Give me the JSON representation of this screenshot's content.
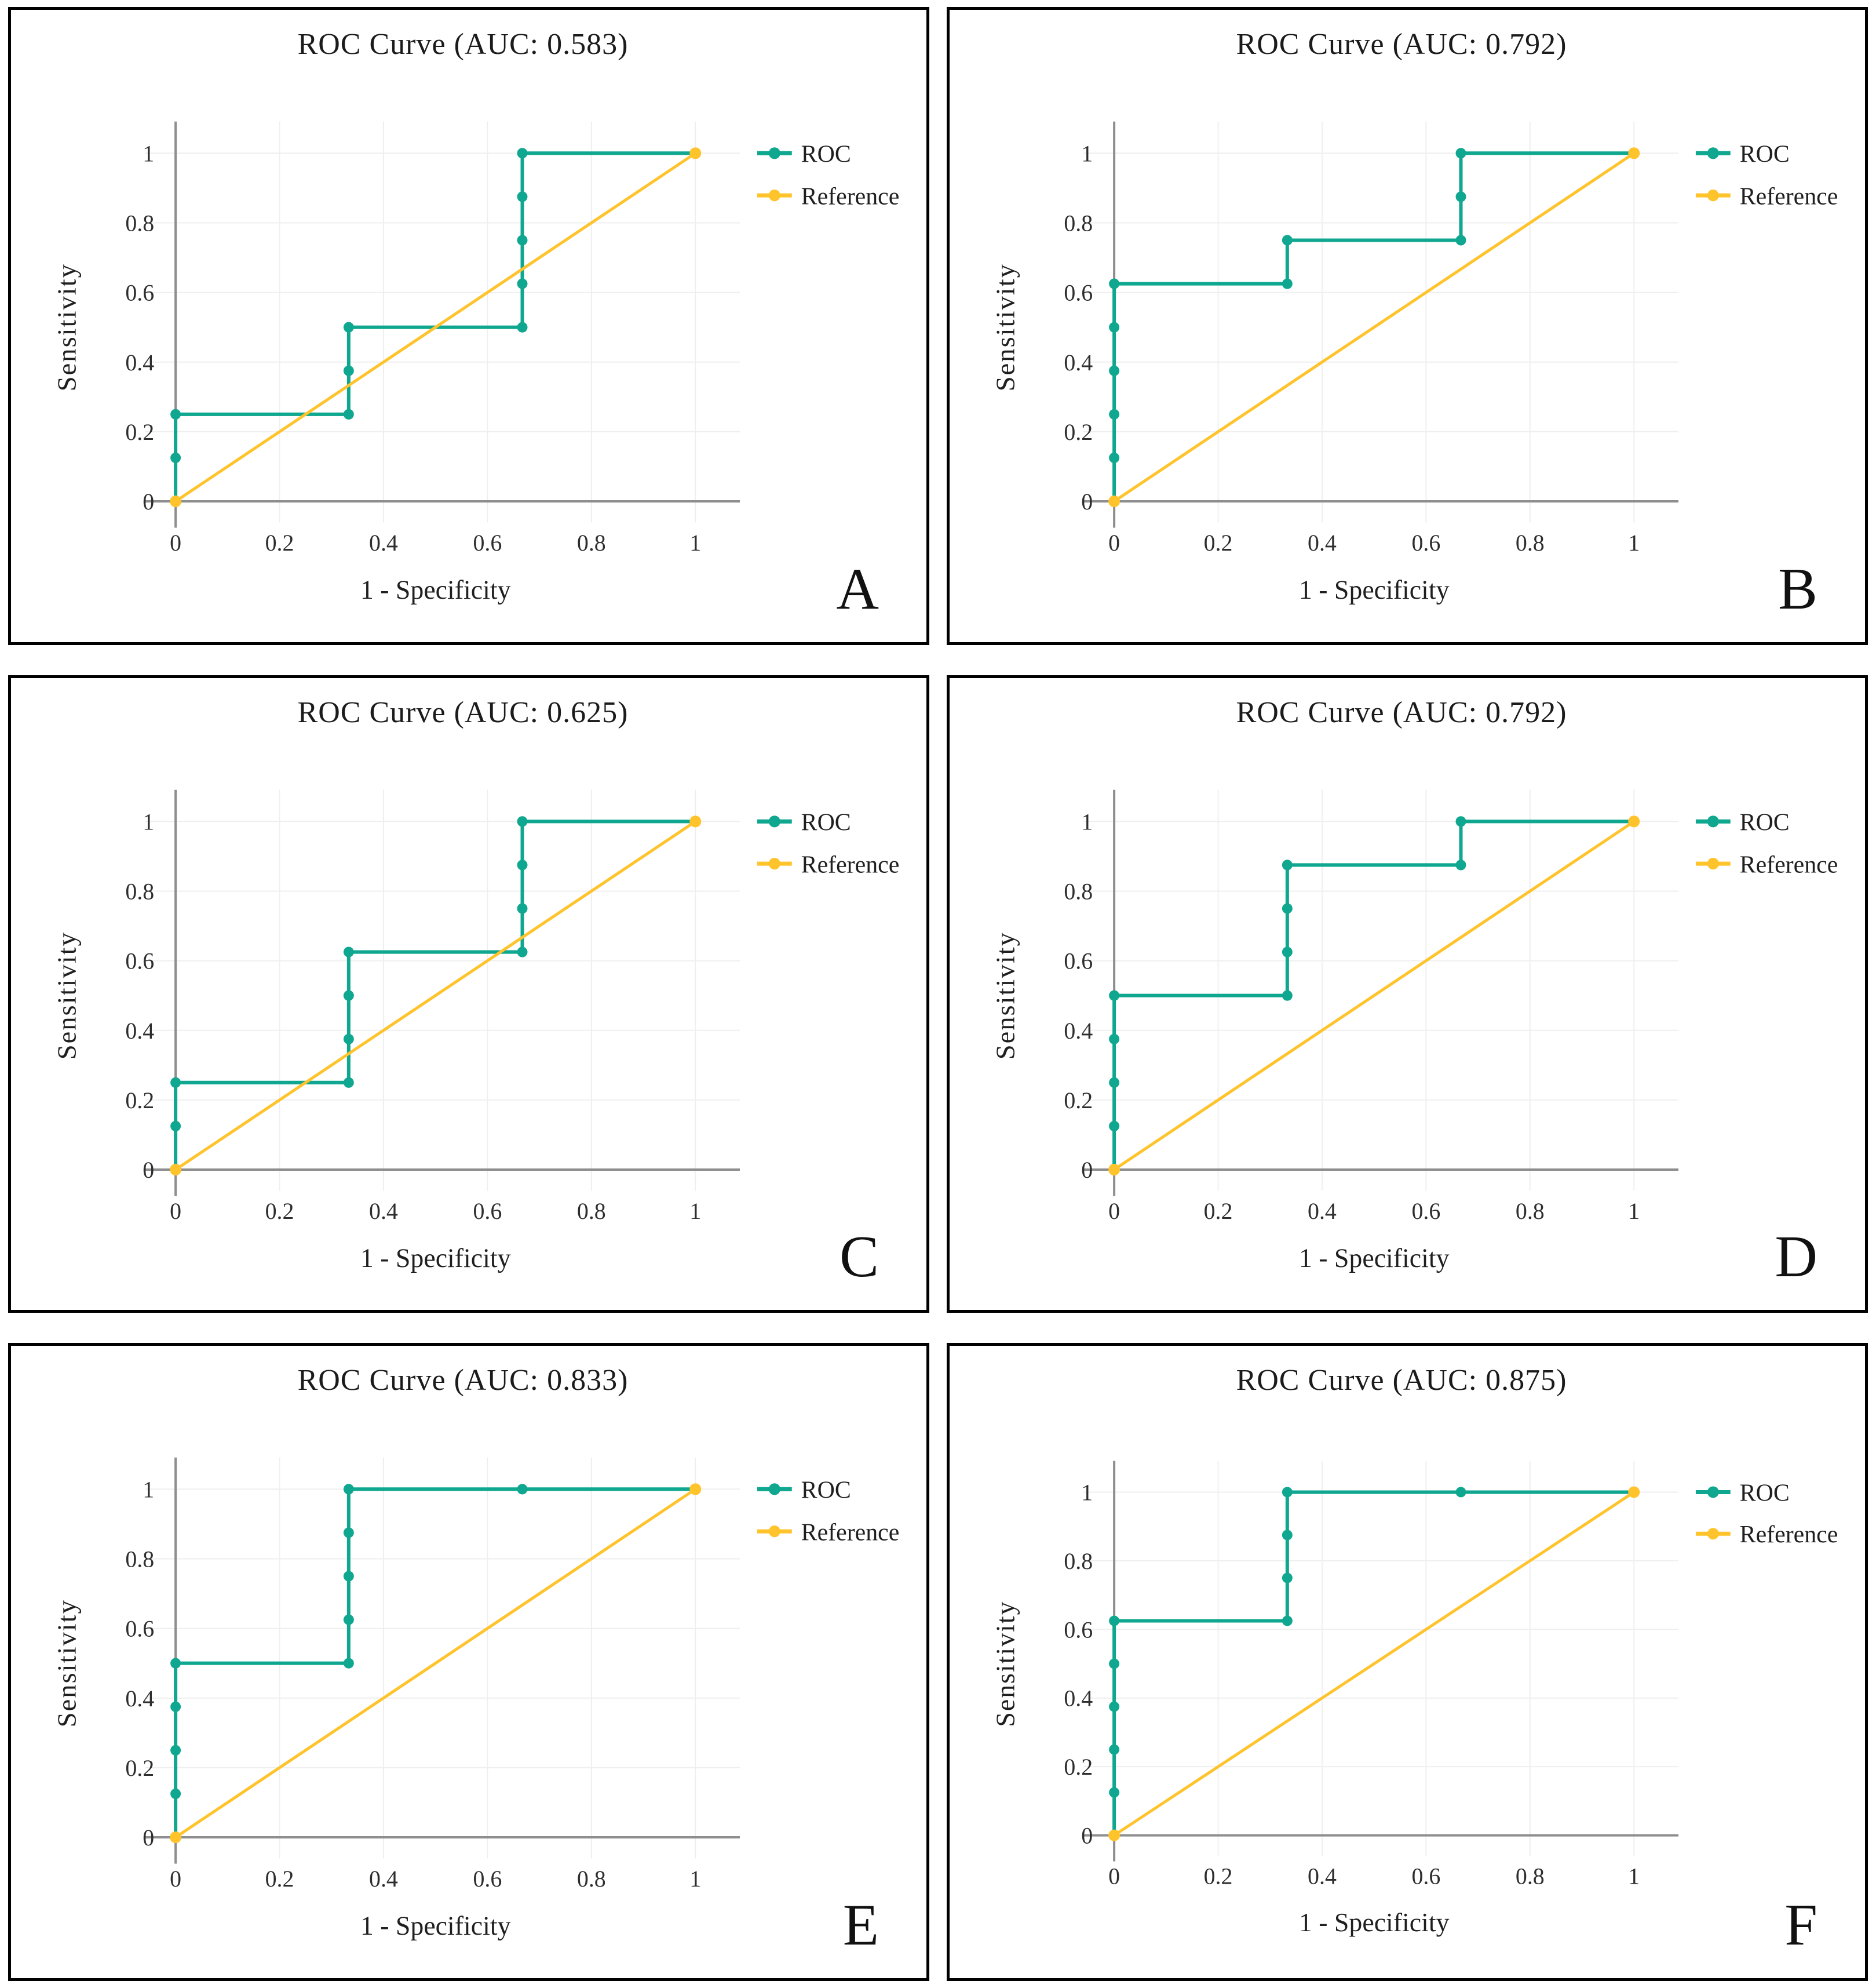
{
  "figure": {
    "legend": {
      "roc_label": "ROC",
      "reference_label": "Reference",
      "position": "top-right-outside"
    },
    "colors": {
      "roc": "#0FA78F",
      "reference": "#FFC32B",
      "axis": "#8E8E8E",
      "grid": "#EFEFEF",
      "text": "#1F1F1F",
      "tick_text": "#2E2E2E"
    },
    "axes": {
      "xlabel": "1 - Specificity",
      "ylabel": "Sensitivity",
      "xticks": [
        0,
        0.2,
        0.4,
        0.6,
        0.8,
        1
      ],
      "yticks": [
        0,
        0.2,
        0.4,
        0.6,
        0.8,
        1
      ],
      "xlim": [
        0,
        1
      ],
      "ylim": [
        0,
        1
      ],
      "grid": true
    }
  },
  "chart_data": [
    {
      "type": "line",
      "panel_label": "A",
      "title": "ROC Curve (AUC: 0.583)",
      "auc": 0.583,
      "xlabel": "1 - Specificity",
      "ylabel": "Sensitivity",
      "xlim": [
        0,
        1
      ],
      "ylim": [
        0,
        1
      ],
      "series": [
        {
          "name": "ROC",
          "points": [
            [
              0,
              0
            ],
            [
              0,
              0.125
            ],
            [
              0,
              0.25
            ],
            [
              0.333,
              0.25
            ],
            [
              0.333,
              0.375
            ],
            [
              0.333,
              0.5
            ],
            [
              0.667,
              0.5
            ],
            [
              0.667,
              0.625
            ],
            [
              0.667,
              0.75
            ],
            [
              0.667,
              0.875
            ],
            [
              0.667,
              1
            ],
            [
              1,
              1
            ]
          ]
        },
        {
          "name": "Reference",
          "points": [
            [
              0,
              0
            ],
            [
              1,
              1
            ]
          ]
        }
      ]
    },
    {
      "type": "line",
      "panel_label": "B",
      "title": "ROC Curve (AUC: 0.792)",
      "auc": 0.792,
      "xlabel": "1 - Specificity",
      "ylabel": "Sensitivity",
      "xlim": [
        0,
        1
      ],
      "ylim": [
        0,
        1
      ],
      "series": [
        {
          "name": "ROC",
          "points": [
            [
              0,
              0
            ],
            [
              0,
              0.125
            ],
            [
              0,
              0.25
            ],
            [
              0,
              0.375
            ],
            [
              0,
              0.5
            ],
            [
              0,
              0.625
            ],
            [
              0.333,
              0.625
            ],
            [
              0.333,
              0.75
            ],
            [
              0.667,
              0.75
            ],
            [
              0.667,
              0.875
            ],
            [
              0.667,
              1
            ],
            [
              1,
              1
            ]
          ]
        },
        {
          "name": "Reference",
          "points": [
            [
              0,
              0
            ],
            [
              1,
              1
            ]
          ]
        }
      ]
    },
    {
      "type": "line",
      "panel_label": "C",
      "title": "ROC Curve (AUC: 0.625)",
      "auc": 0.625,
      "xlabel": "1 - Specificity",
      "ylabel": "Sensitivity",
      "xlim": [
        0,
        1
      ],
      "ylim": [
        0,
        1
      ],
      "series": [
        {
          "name": "ROC",
          "points": [
            [
              0,
              0
            ],
            [
              0,
              0.125
            ],
            [
              0,
              0.25
            ],
            [
              0.333,
              0.25
            ],
            [
              0.333,
              0.375
            ],
            [
              0.333,
              0.5
            ],
            [
              0.333,
              0.625
            ],
            [
              0.667,
              0.625
            ],
            [
              0.667,
              0.75
            ],
            [
              0.667,
              0.875
            ],
            [
              0.667,
              1
            ],
            [
              1,
              1
            ]
          ]
        },
        {
          "name": "Reference",
          "points": [
            [
              0,
              0
            ],
            [
              1,
              1
            ]
          ]
        }
      ]
    },
    {
      "type": "line",
      "panel_label": "D",
      "title": "ROC Curve (AUC: 0.792)",
      "auc": 0.792,
      "xlabel": "1 - Specificity",
      "ylabel": "Sensitivity",
      "xlim": [
        0,
        1
      ],
      "ylim": [
        0,
        1
      ],
      "series": [
        {
          "name": "ROC",
          "points": [
            [
              0,
              0
            ],
            [
              0,
              0.125
            ],
            [
              0,
              0.25
            ],
            [
              0,
              0.375
            ],
            [
              0,
              0.5
            ],
            [
              0.333,
              0.5
            ],
            [
              0.333,
              0.625
            ],
            [
              0.333,
              0.75
            ],
            [
              0.333,
              0.875
            ],
            [
              0.667,
              0.875
            ],
            [
              0.667,
              1
            ],
            [
              1,
              1
            ]
          ]
        },
        {
          "name": "Reference",
          "points": [
            [
              0,
              0
            ],
            [
              1,
              1
            ]
          ]
        }
      ]
    },
    {
      "type": "line",
      "panel_label": "E",
      "title": "ROC Curve (AUC: 0.833)",
      "auc": 0.833,
      "xlabel": "1 - Specificity",
      "ylabel": "Sensitivity",
      "xlim": [
        0,
        1
      ],
      "ylim": [
        0,
        1
      ],
      "series": [
        {
          "name": "ROC",
          "points": [
            [
              0,
              0
            ],
            [
              0,
              0.125
            ],
            [
              0,
              0.25
            ],
            [
              0,
              0.375
            ],
            [
              0,
              0.5
            ],
            [
              0.333,
              0.5
            ],
            [
              0.333,
              0.625
            ],
            [
              0.333,
              0.75
            ],
            [
              0.333,
              0.875
            ],
            [
              0.333,
              1
            ],
            [
              0.667,
              1
            ],
            [
              1,
              1
            ]
          ]
        },
        {
          "name": "Reference",
          "points": [
            [
              0,
              0
            ],
            [
              1,
              1
            ]
          ]
        }
      ]
    },
    {
      "type": "line",
      "panel_label": "F",
      "title": "ROC Curve (AUC: 0.875)",
      "auc": 0.875,
      "xlabel": "1 - Specificity",
      "ylabel": "Sensitivity",
      "xlim": [
        0,
        1
      ],
      "ylim": [
        0,
        1
      ],
      "series": [
        {
          "name": "ROC",
          "points": [
            [
              0,
              0
            ],
            [
              0,
              0.125
            ],
            [
              0,
              0.25
            ],
            [
              0,
              0.375
            ],
            [
              0,
              0.5
            ],
            [
              0,
              0.625
            ],
            [
              0.333,
              0.625
            ],
            [
              0.333,
              0.75
            ],
            [
              0.333,
              0.875
            ],
            [
              0.333,
              1
            ],
            [
              0.667,
              1
            ],
            [
              1,
              1
            ]
          ]
        },
        {
          "name": "Reference",
          "points": [
            [
              0,
              0
            ],
            [
              1,
              1
            ]
          ]
        }
      ]
    }
  ]
}
